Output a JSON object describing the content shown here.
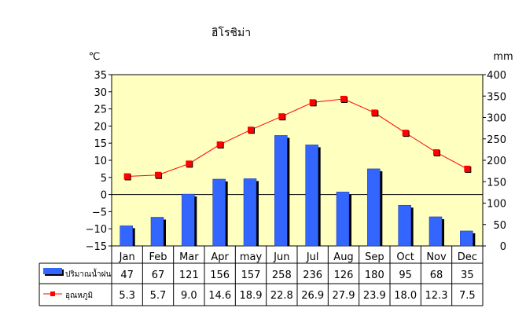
{
  "chart_data": {
    "type": "bar+line",
    "title": "ฮิโรชิม่า",
    "left_unit": "℃",
    "right_unit": "mm",
    "categories": [
      "Jan",
      "Feb",
      "Mar",
      "Apr",
      "may",
      "Jun",
      "Jul",
      "Aug",
      "Sep",
      "Oct",
      "Nov",
      "Dec"
    ],
    "left_axis": {
      "range": [
        -15,
        35
      ],
      "ticks": [
        -15,
        -10,
        -5,
        0,
        5,
        10,
        15,
        20,
        25,
        30,
        35
      ]
    },
    "right_axis": {
      "range": [
        0,
        400
      ],
      "ticks": [
        0,
        50,
        100,
        150,
        200,
        250,
        300,
        350,
        400
      ]
    },
    "series": [
      {
        "name": "ปริมาณน้ำฝน",
        "kind": "bar",
        "axis": "right",
        "color": "#3366ff",
        "values": [
          47,
          67,
          121,
          156,
          157,
          258,
          236,
          126,
          180,
          95,
          68,
          35
        ]
      },
      {
        "name": "อุณหภูมิ",
        "kind": "line",
        "axis": "left",
        "color": "#ff0000",
        "values": [
          5.3,
          5.7,
          9.0,
          14.6,
          18.9,
          22.8,
          26.9,
          27.9,
          23.9,
          18.0,
          12.3,
          7.5
        ]
      }
    ],
    "table_labels": {
      "rain": [
        "47",
        "67",
        "121",
        "156",
        "157",
        "258",
        "236",
        "126",
        "180",
        "95",
        "68",
        "35"
      ],
      "temp": [
        "5.3",
        "5.7",
        "9.0",
        "14.6",
        "18.9",
        "22.8",
        "26.9",
        "27.9",
        "23.9",
        "18.0",
        "12.3",
        "7.5"
      ]
    },
    "plot_background": "#ffffc0",
    "grid": true,
    "legend_placement": "data-table"
  }
}
